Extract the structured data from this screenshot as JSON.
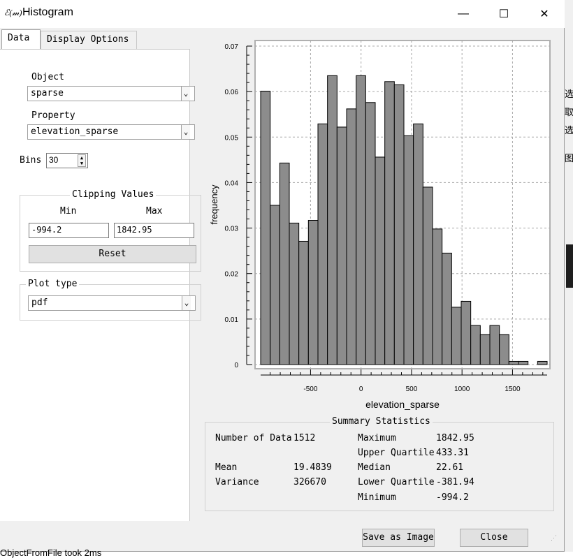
{
  "window": {
    "title": "Histogram",
    "app_icon_text": "ℰ(𝓂)",
    "minimize_glyph": "—",
    "maximize_glyph": "☐",
    "close_glyph": "✕"
  },
  "tabs": [
    {
      "label": "Data",
      "active": true
    },
    {
      "label": "Display Options",
      "active": false
    }
  ],
  "data_panel": {
    "object_label": "Object",
    "object_value": "sparse",
    "property_label": "Property",
    "property_value": "elevation_sparse",
    "bins_label": "Bins",
    "bins_value": "30",
    "clipping": {
      "title": "Clipping Values",
      "min_label": "Min",
      "max_label": "Max",
      "min_value": "-994.2",
      "max_value": "1842.95",
      "reset_label": "Reset"
    },
    "plot_type": {
      "label": "Plot type",
      "value": "pdf"
    }
  },
  "chart_data": {
    "type": "bar",
    "xlabel": "elevation_sparse",
    "ylabel": "frequency",
    "xlim": [
      -994.2,
      1842.95
    ],
    "ylim": [
      0,
      0.07
    ],
    "xticks": [
      -500,
      0,
      500,
      1000,
      1500
    ],
    "yticks": [
      0,
      0.01,
      0.02,
      0.03,
      0.04,
      0.05,
      0.06,
      0.07
    ],
    "grid": true,
    "bin_count": 30,
    "values": [
      0.0601,
      0.035,
      0.0443,
      0.0311,
      0.0271,
      0.0317,
      0.0529,
      0.0635,
      0.0522,
      0.0562,
      0.0635,
      0.0576,
      0.0456,
      0.0622,
      0.0615,
      0.0503,
      0.0529,
      0.039,
      0.0298,
      0.0245,
      0.0126,
      0.0139,
      0.0086,
      0.0066,
      0.0086,
      0.0066,
      0.0007,
      0.0007,
      0.0,
      0.0007
    ],
    "bar_color": "#8c8c8c"
  },
  "summary": {
    "title": "Summary Statistics",
    "left": [
      {
        "label": "Number of Data",
        "value": "1512"
      },
      {
        "label": "Mean",
        "value": "19.4839"
      },
      {
        "label": "Variance",
        "value": "326670"
      }
    ],
    "right": [
      {
        "label": "Maximum",
        "value": "1842.95"
      },
      {
        "label": "Upper Quartile",
        "value": "433.31"
      },
      {
        "label": "Median",
        "value": "22.61"
      },
      {
        "label": "Lower Quartile",
        "value": "-381.94"
      },
      {
        "label": "Minimum",
        "value": "-994.2"
      }
    ]
  },
  "buttons": {
    "save_image": "Save as Image",
    "close": "Close"
  },
  "background": {
    "status_text": "ObjectFromFile took 2ms",
    "side_chars": [
      "选",
      "取",
      "选",
      "图"
    ]
  }
}
